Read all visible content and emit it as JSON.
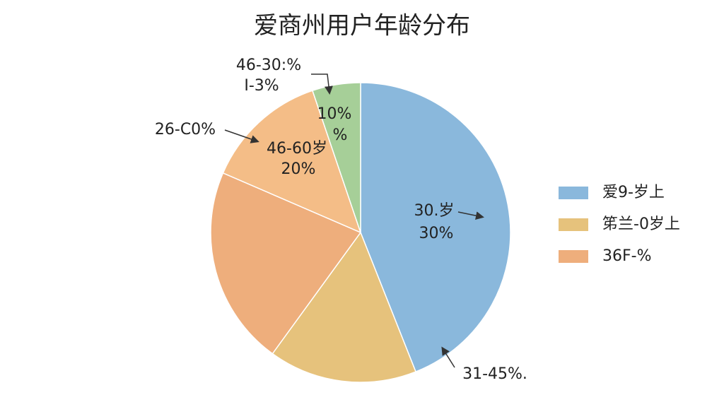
{
  "chart_data": {
    "type": "pie",
    "title": "爱商州用户年龄分布",
    "values": [
      44,
      16,
      21.5,
      13.3,
      5.2
    ],
    "colors": [
      "#8ab8dc",
      "#e6c27c",
      "#eeae7c",
      "#f4bd87",
      "#a6cf98"
    ],
    "legend": [
      {
        "label": "爱9-岁上",
        "color": "#8ab8dc"
      },
      {
        "label": "笫兰-0岁上",
        "color": "#e6c27c"
      },
      {
        "label": "36F-%",
        "color": "#eeae7c"
      }
    ],
    "annotations": [
      "46-30:%",
      "I-3%",
      "10%",
      "%",
      "26-C0%",
      "46-60岁",
      "20%",
      "30.岁",
      "30%",
      "31-45%."
    ]
  }
}
